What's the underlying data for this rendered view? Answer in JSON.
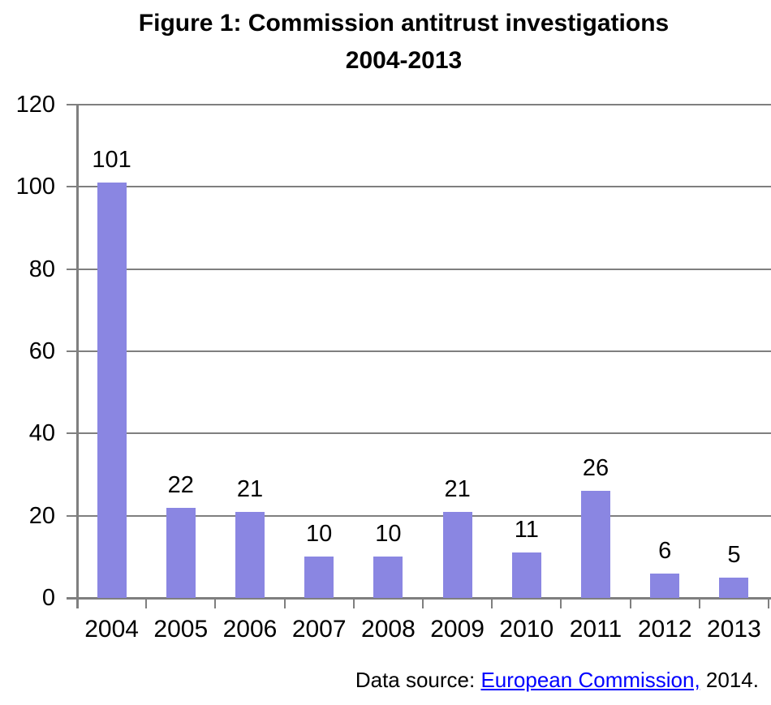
{
  "title": {
    "line1": "Figure 1: Commission antitrust investigations",
    "line2": "2004-2013"
  },
  "chart_data": {
    "type": "bar",
    "title": "Figure 1: Commission antitrust investigations 2004-2013",
    "categories": [
      "2004",
      "2005",
      "2006",
      "2007",
      "2008",
      "2009",
      "2010",
      "2011",
      "2012",
      "2013"
    ],
    "values": [
      101,
      22,
      21,
      10,
      10,
      21,
      11,
      26,
      6,
      5
    ],
    "xlabel": "",
    "ylabel": "",
    "ylim": [
      0,
      120
    ],
    "yticks": [
      0,
      20,
      40,
      60,
      80,
      100,
      120
    ],
    "grid": true,
    "legend": false,
    "data_labels": true
  },
  "source": {
    "prefix": "Data source: ",
    "link_text": "European Commission,",
    "suffix": " 2014."
  },
  "colors": {
    "bar": "#8A86E2",
    "grid": "#7F7F7F",
    "axis": "#7F7F7F",
    "text": "#000000",
    "link": "#0000FF"
  }
}
